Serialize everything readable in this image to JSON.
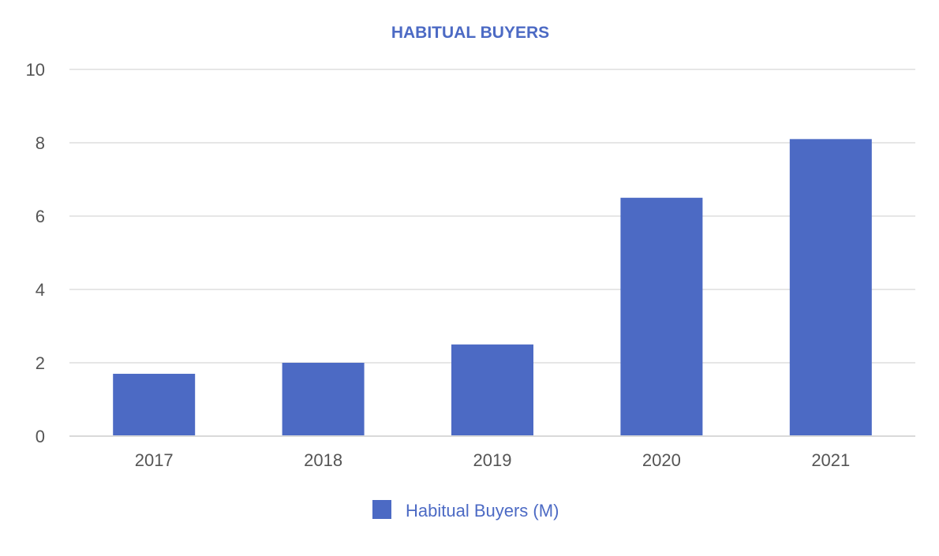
{
  "colors": {
    "series": "#4c6ac4",
    "title": "#4c6ac4",
    "grid": "#e6e6e6",
    "axis": "#d9d9d9",
    "tick_text": "#555555"
  },
  "chart_data": {
    "type": "bar",
    "title": "HABITUAL BUYERS",
    "xlabel": "",
    "ylabel": "",
    "categories": [
      "2017",
      "2018",
      "2019",
      "2020",
      "2021"
    ],
    "series": [
      {
        "name": "Habitual Buyers (M)",
        "values": [
          1.7,
          2.0,
          2.5,
          6.5,
          8.1
        ]
      }
    ],
    "ylim": [
      0,
      10
    ],
    "yticks": [
      0,
      2,
      4,
      6,
      8,
      10
    ],
    "grid": true,
    "legend_position": "bottom-center"
  }
}
